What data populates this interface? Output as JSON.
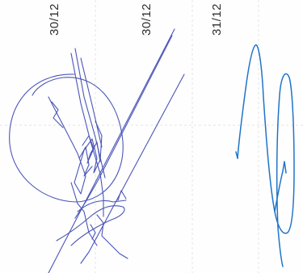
{
  "dates": [
    "30/12",
    "30/12",
    "31/12"
  ],
  "colors": {
    "signature_1": "#4a55b8",
    "signature_2": "#1f74c9",
    "grid": "#e2e2e2"
  }
}
